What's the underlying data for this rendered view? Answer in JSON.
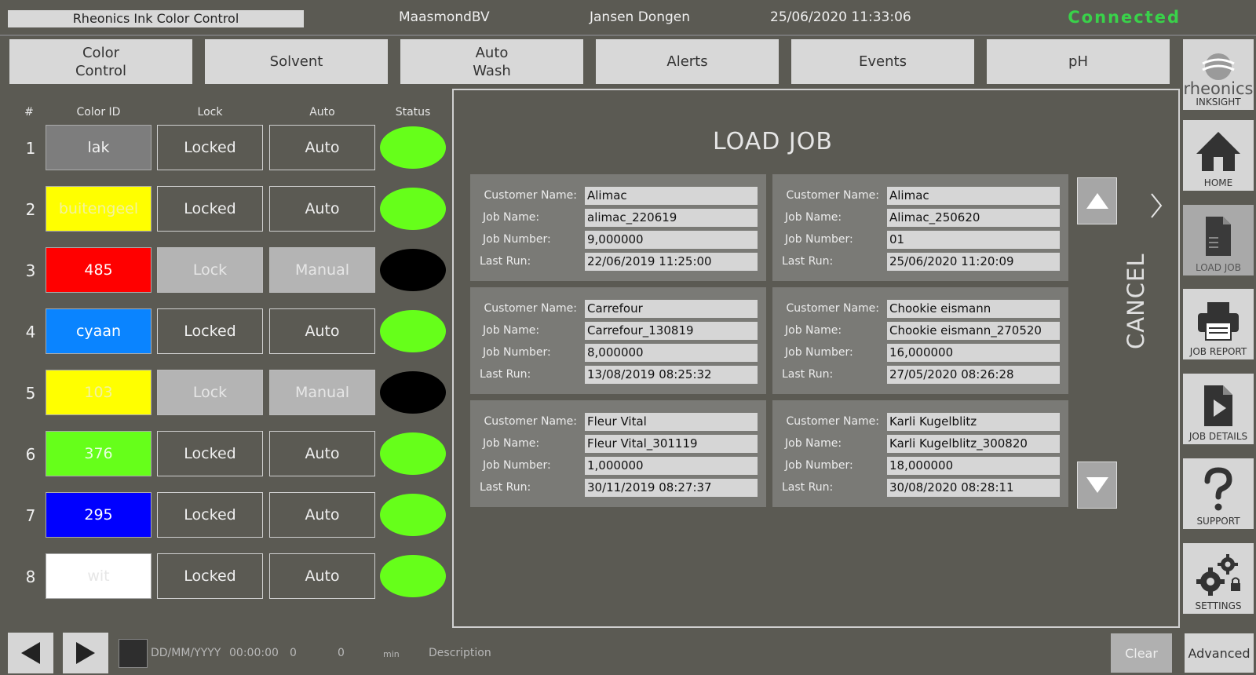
{
  "header": {
    "app_title": "Rheonics Ink Color Control",
    "company": "MaasmondBV",
    "operator": "Jansen Dongen",
    "datetime": "25/06/2020 11:33:06",
    "connection_status": "Connected",
    "connection_color": "#39d24a"
  },
  "tabs": [
    {
      "label": "Color\nControl"
    },
    {
      "label": "Solvent"
    },
    {
      "label": "Auto\nWash"
    },
    {
      "label": "Alerts"
    },
    {
      "label": "Events"
    },
    {
      "label": "pH"
    }
  ],
  "color_table": {
    "headers": {
      "num": "#",
      "color_id": "Color ID",
      "lock": "Lock",
      "auto": "Auto",
      "status": "Status"
    },
    "rows": [
      {
        "num": "1",
        "color_id": "lak",
        "bg": "#7d7d7d",
        "fg": "#f2f2f2",
        "lock": "Locked",
        "auto": "Auto",
        "enabled": true,
        "status_color": "#66ff1a"
      },
      {
        "num": "2",
        "color_id": "buitengeel",
        "bg": "#ffff00",
        "fg": "#f2f2a0",
        "lock": "Locked",
        "auto": "Auto",
        "enabled": true,
        "status_color": "#66ff1a"
      },
      {
        "num": "3",
        "color_id": "485",
        "bg": "#ff0000",
        "fg": "#ffffff",
        "lock": "Lock",
        "auto": "Manual",
        "enabled": false,
        "status_color": "#000000"
      },
      {
        "num": "4",
        "color_id": "cyaan",
        "bg": "#0a84ff",
        "fg": "#ffffff",
        "lock": "Locked",
        "auto": "Auto",
        "enabled": true,
        "status_color": "#66ff1a"
      },
      {
        "num": "5",
        "color_id": "103",
        "bg": "#ffff00",
        "fg": "#f2f2a0",
        "lock": "Lock",
        "auto": "Manual",
        "enabled": false,
        "status_color": "#000000"
      },
      {
        "num": "6",
        "color_id": "376",
        "bg": "#66ff1a",
        "fg": "#e8ffe0",
        "lock": "Locked",
        "auto": "Auto",
        "enabled": true,
        "status_color": "#66ff1a"
      },
      {
        "num": "7",
        "color_id": "295",
        "bg": "#0000ff",
        "fg": "#ffffff",
        "lock": "Locked",
        "auto": "Auto",
        "enabled": true,
        "status_color": "#66ff1a"
      },
      {
        "num": "8",
        "color_id": "wit",
        "bg": "#ffffff",
        "fg": "#e6e6e6",
        "lock": "Locked",
        "auto": "Auto",
        "enabled": true,
        "status_color": "#66ff1a"
      }
    ]
  },
  "load_job": {
    "title": "LOAD JOB",
    "labels": {
      "customer": "Customer Name:",
      "job_name": "Job Name:",
      "job_number": "Job Number:",
      "last_run": "Last Run:"
    },
    "jobs": [
      {
        "customer": "Alimac",
        "job_name": "alimac_220619",
        "job_number": "9,000000",
        "last_run": "22/06/2019 11:25:00"
      },
      {
        "customer": "Alimac",
        "job_name": "Alimac_250620",
        "job_number": "01",
        "last_run": "25/06/2020 11:20:09"
      },
      {
        "customer": "Carrefour",
        "job_name": "Carrefour_130819",
        "job_number": "8,000000",
        "last_run": "13/08/2019 08:25:32"
      },
      {
        "customer": "Chookie eismann",
        "job_name": "Chookie eismann_270520",
        "job_number": "16,000000",
        "last_run": "27/05/2020 08:26:28"
      },
      {
        "customer": "Fleur Vital",
        "job_name": "Fleur Vital_301119",
        "job_number": "1,000000",
        "last_run": "30/11/2019 08:27:37"
      },
      {
        "customer": "Karli Kugelblitz",
        "job_name": "Karli Kugelblitz_300820",
        "job_number": "18,000000",
        "last_run": "30/08/2020 08:28:11"
      }
    ],
    "cancel_label": "CANCEL"
  },
  "sidebar": {
    "logo_text": "rheonics",
    "logo_sub": "INKSIGHT",
    "items": [
      {
        "label": "HOME",
        "icon": "home-icon"
      },
      {
        "label": "LOAD JOB",
        "icon": "document-icon"
      },
      {
        "label": "JOB REPORT",
        "icon": "printer-icon"
      },
      {
        "label": "JOB DETAILS",
        "icon": "play-document-icon"
      },
      {
        "label": "SUPPORT",
        "icon": "question-icon"
      },
      {
        "label": "SETTINGS",
        "icon": "gears-lock-icon"
      }
    ]
  },
  "footer": {
    "date_placeholder": "DD/MM/YYYY",
    "time_placeholder": "00:00:00",
    "value_a": "0",
    "value_b": "0",
    "unit": "min",
    "description": "Description",
    "clear_label": "Clear",
    "advanced_label": "Advanced"
  }
}
